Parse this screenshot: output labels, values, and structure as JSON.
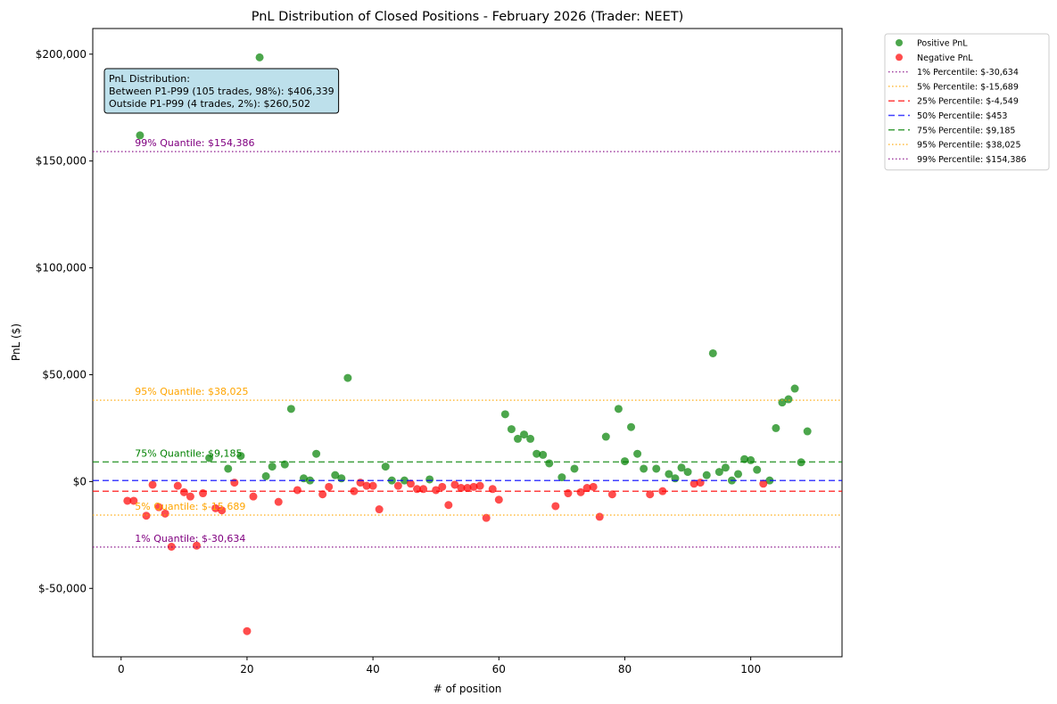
{
  "chart_data": {
    "type": "scatter",
    "title": "PnL Distribution of Closed Positions - February 2026 (Trader: NEET)",
    "xlabel": "# of position",
    "ylabel": "PnL ($)",
    "xlim": [
      -4.5,
      114.5
    ],
    "ylim": [
      -82000,
      212000
    ],
    "xticks": [
      {
        "value": 0,
        "label": "0"
      },
      {
        "value": 20,
        "label": "20"
      },
      {
        "value": 40,
        "label": "40"
      },
      {
        "value": 60,
        "label": "60"
      },
      {
        "value": 80,
        "label": "80"
      },
      {
        "value": 100,
        "label": "100"
      }
    ],
    "yticks": [
      {
        "value": -50000,
        "label": "$-50,000"
      },
      {
        "value": 0,
        "label": "$0"
      },
      {
        "value": 50000,
        "label": "$50,000"
      },
      {
        "value": 100000,
        "label": "$100,000"
      },
      {
        "value": 150000,
        "label": "$150,000"
      },
      {
        "value": 200000,
        "label": "$200,000"
      }
    ],
    "grid": false,
    "legend_position": "outside-top-right",
    "series": [
      {
        "name": "Positive PnL",
        "color": "#008000",
        "points": [
          [
            3,
            162000
          ],
          [
            14,
            11000
          ],
          [
            17,
            6000
          ],
          [
            19,
            12000
          ],
          [
            22,
            198500
          ],
          [
            23,
            2500
          ],
          [
            24,
            7000
          ],
          [
            26,
            8000
          ],
          [
            27,
            34000
          ],
          [
            29,
            1500
          ],
          [
            30,
            500
          ],
          [
            31,
            13000
          ],
          [
            34,
            3000
          ],
          [
            35,
            1500
          ],
          [
            36,
            48500
          ],
          [
            43,
            500
          ],
          [
            42,
            7000
          ],
          [
            45,
            500
          ],
          [
            49,
            1000
          ],
          [
            61,
            31500
          ],
          [
            62,
            24500
          ],
          [
            63,
            20000
          ],
          [
            64,
            22000
          ],
          [
            65,
            20000
          ],
          [
            66,
            13000
          ],
          [
            67,
            12500
          ],
          [
            68,
            8500
          ],
          [
            70,
            2000
          ],
          [
            72,
            6000
          ],
          [
            77,
            21000
          ],
          [
            79,
            34000
          ],
          [
            80,
            9500
          ],
          [
            81,
            25500
          ],
          [
            82,
            13000
          ],
          [
            83,
            6000
          ],
          [
            85,
            6000
          ],
          [
            87,
            3500
          ],
          [
            88,
            1500
          ],
          [
            89,
            6500
          ],
          [
            90,
            4500
          ],
          [
            93,
            3000
          ],
          [
            94,
            60000
          ],
          [
            95,
            4500
          ],
          [
            96,
            6500
          ],
          [
            97,
            500
          ],
          [
            98,
            3500
          ],
          [
            99,
            10500
          ],
          [
            100,
            10000
          ],
          [
            101,
            5500
          ],
          [
            103,
            500
          ],
          [
            104,
            25000
          ],
          [
            105,
            37000
          ],
          [
            106,
            38500
          ],
          [
            107,
            43500
          ],
          [
            108,
            9000
          ],
          [
            109,
            23500
          ]
        ]
      },
      {
        "name": "Negative PnL",
        "color": "#ff0000",
        "points": [
          [
            1,
            -9000
          ],
          [
            2,
            -9000
          ],
          [
            4,
            -16000
          ],
          [
            5,
            -1500
          ],
          [
            6,
            -12000
          ],
          [
            7,
            -15000
          ],
          [
            8,
            -30500
          ],
          [
            9,
            -2000
          ],
          [
            10,
            -5000
          ],
          [
            11,
            -7000
          ],
          [
            12,
            -30000
          ],
          [
            13,
            -5500
          ],
          [
            15,
            -12500
          ],
          [
            16,
            -13500
          ],
          [
            18,
            -500
          ],
          [
            20,
            -70000
          ],
          [
            21,
            -7000
          ],
          [
            25,
            -9500
          ],
          [
            28,
            -4000
          ],
          [
            32,
            -6000
          ],
          [
            33,
            -2500
          ],
          [
            37,
            -4500
          ],
          [
            38,
            -500
          ],
          [
            39,
            -2000
          ],
          [
            40,
            -2000
          ],
          [
            41,
            -13000
          ],
          [
            44,
            -2000
          ],
          [
            46,
            -1000
          ],
          [
            47,
            -3500
          ],
          [
            48,
            -3500
          ],
          [
            50,
            -4000
          ],
          [
            51,
            -2500
          ],
          [
            52,
            -11000
          ],
          [
            53,
            -1500
          ],
          [
            54,
            -3000
          ],
          [
            55,
            -3000
          ],
          [
            56,
            -2500
          ],
          [
            57,
            -2000
          ],
          [
            58,
            -17000
          ],
          [
            59,
            -3500
          ],
          [
            60,
            -8500
          ],
          [
            69,
            -11500
          ],
          [
            71,
            -5500
          ],
          [
            73,
            -5000
          ],
          [
            74,
            -3000
          ],
          [
            75,
            -2500
          ],
          [
            76,
            -16500
          ],
          [
            78,
            -6000
          ],
          [
            84,
            -6000
          ],
          [
            86,
            -4500
          ],
          [
            91,
            -1000
          ],
          [
            92,
            -500
          ],
          [
            102,
            -1000
          ]
        ]
      }
    ],
    "reference_lines": [
      {
        "legend": "1% Percentile: $-30,634",
        "label": "1% Quantile: $-30,634",
        "value": -30634,
        "color": "#800080",
        "style": "dotted"
      },
      {
        "legend": "5% Percentile: $-15,689",
        "label": "5% Quantile: $-15,689",
        "value": -15689,
        "color": "#ffa500",
        "style": "dotted"
      },
      {
        "legend": "25% Percentile: $-4,549",
        "label": "",
        "value": -4549,
        "color": "#ff0000",
        "style": "dashed"
      },
      {
        "legend": "50% Percentile: $453",
        "label": "",
        "value": 453,
        "color": "#0000ff",
        "style": "dashed"
      },
      {
        "legend": "75% Percentile: $9,185",
        "label": "75% Quantile: $9,185",
        "value": 9185,
        "color": "#008000",
        "style": "dashed"
      },
      {
        "legend": "95% Percentile: $38,025",
        "label": "95% Quantile: $38,025",
        "value": 38025,
        "color": "#ffa500",
        "style": "dotted"
      },
      {
        "legend": "99% Percentile: $154,386",
        "label": "99% Quantile: $154,386",
        "value": 154386,
        "color": "#800080",
        "style": "dotted"
      }
    ],
    "annotation_box": {
      "lines": [
        "PnL Distribution:",
        "Between P1-P99 (105 trades, 98%): $406,339",
        "Outside P1-P99 (4 trades, 2%): $260,502"
      ],
      "background": "#add8e6"
    }
  }
}
